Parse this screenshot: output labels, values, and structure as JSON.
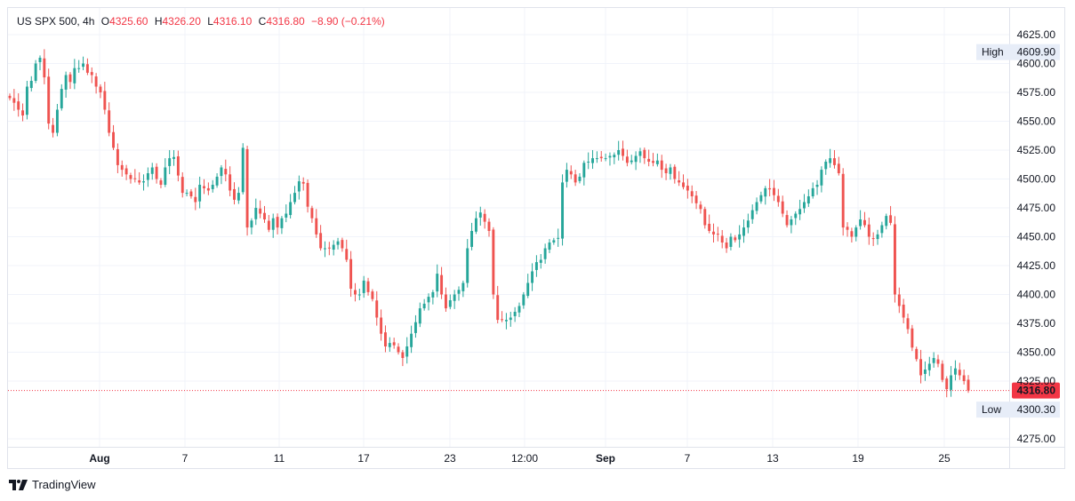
{
  "header": {
    "symbol": "US SPX 500, 4h",
    "o_label": "O",
    "o_value": "4325.60",
    "h_label": "H",
    "h_value": "4326.20",
    "l_label": "L",
    "l_value": "4316.10",
    "c_label": "C",
    "c_value": "4316.80",
    "change": "−8.90 (−0.21%)"
  },
  "brand": {
    "name": "TradingView"
  },
  "colors": {
    "up": "#26a69a",
    "down": "#ef5350",
    "last_price": "#f23645",
    "badge_bg": "#e7edf8"
  },
  "chart_data": {
    "type": "candlestick",
    "symbol": "US SPX 500",
    "interval": "4h",
    "ylim": [
      4265,
      4635
    ],
    "y_ticks": [
      "4625.00",
      "4600.00",
      "4575.00",
      "4550.00",
      "4525.00",
      "4500.00",
      "4475.00",
      "4450.00",
      "4425.00",
      "4400.00",
      "4375.00",
      "4350.00",
      "4325.00",
      "4275.00"
    ],
    "x_ticks": [
      "Aug",
      "7",
      "11",
      "17",
      "23",
      "12:00",
      "Sep",
      "7",
      "13",
      "19",
      "25"
    ],
    "high_badge": {
      "label": "High",
      "value": "4609.90"
    },
    "low_badge": {
      "label": "Low",
      "value": "4300.30"
    },
    "last_price": "4316.80",
    "grid": true,
    "closes": [
      4570,
      4566,
      4560,
      4555,
      4580,
      4585,
      4600,
      4605,
      4588,
      4548,
      4540,
      4560,
      4578,
      4590,
      4584,
      4596,
      4596,
      4600,
      4592,
      4590,
      4580,
      4575,
      4560,
      4540,
      4527,
      4512,
      4508,
      4504,
      4500,
      4500,
      4497,
      4498,
      4505,
      4510,
      4500,
      4495,
      4510,
      4518,
      4519,
      4503,
      4488,
      4488,
      4485,
      4480,
      4495,
      4492,
      4490,
      4495,
      4502,
      4510,
      4504,
      4490,
      4482,
      4488,
      4527,
      4458,
      4464,
      4475,
      4470,
      4465,
      4456,
      4466,
      4458,
      4466,
      4470,
      4480,
      4488,
      4498,
      4496,
      4476,
      4466,
      4452,
      4440,
      4440,
      4440,
      4443,
      4446,
      4440,
      4430,
      4405,
      4400,
      4400,
      4412,
      4402,
      4396,
      4380,
      4366,
      4355,
      4358,
      4356,
      4350,
      4345,
      4355,
      4366,
      4376,
      4388,
      4392,
      4398,
      4402,
      4418,
      4400,
      4388,
      4395,
      4400,
      4404,
      4410,
      4440,
      4455,
      4466,
      4471,
      4463,
      4455,
      4400,
      4378,
      4378,
      4378,
      4380,
      4385,
      4390,
      4400,
      4410,
      4420,
      4428,
      4430,
      4440,
      4445,
      4447,
      4449,
      4497,
      4508,
      4504,
      4497,
      4502,
      4514,
      4515,
      4518,
      4518,
      4518,
      4518,
      4520,
      4521,
      4525,
      4520,
      4514,
      4516,
      4520,
      4524,
      4518,
      4515,
      4514,
      4516,
      4508,
      4505,
      4510,
      4500,
      4497,
      4493,
      4490,
      4485,
      4479,
      4474,
      4460,
      4455,
      4452,
      4452,
      4445,
      4440,
      4450,
      4447,
      4452,
      4458,
      4464,
      4473,
      4480,
      4486,
      4492,
      4491,
      4486,
      4480,
      4470,
      4460,
      4465,
      4470,
      4474,
      4480,
      4485,
      4492,
      4495,
      4508,
      4515,
      4518,
      4512,
      4505,
      4458,
      4456,
      4450,
      4458,
      4465,
      4460,
      4450,
      4448,
      4452,
      4460,
      4468,
      4462,
      4400,
      4390,
      4380,
      4370,
      4354,
      4344,
      4330,
      4335,
      4340,
      4345,
      4340,
      4326,
      4318,
      4330,
      4336,
      4330,
      4325,
      4316.8
    ]
  }
}
